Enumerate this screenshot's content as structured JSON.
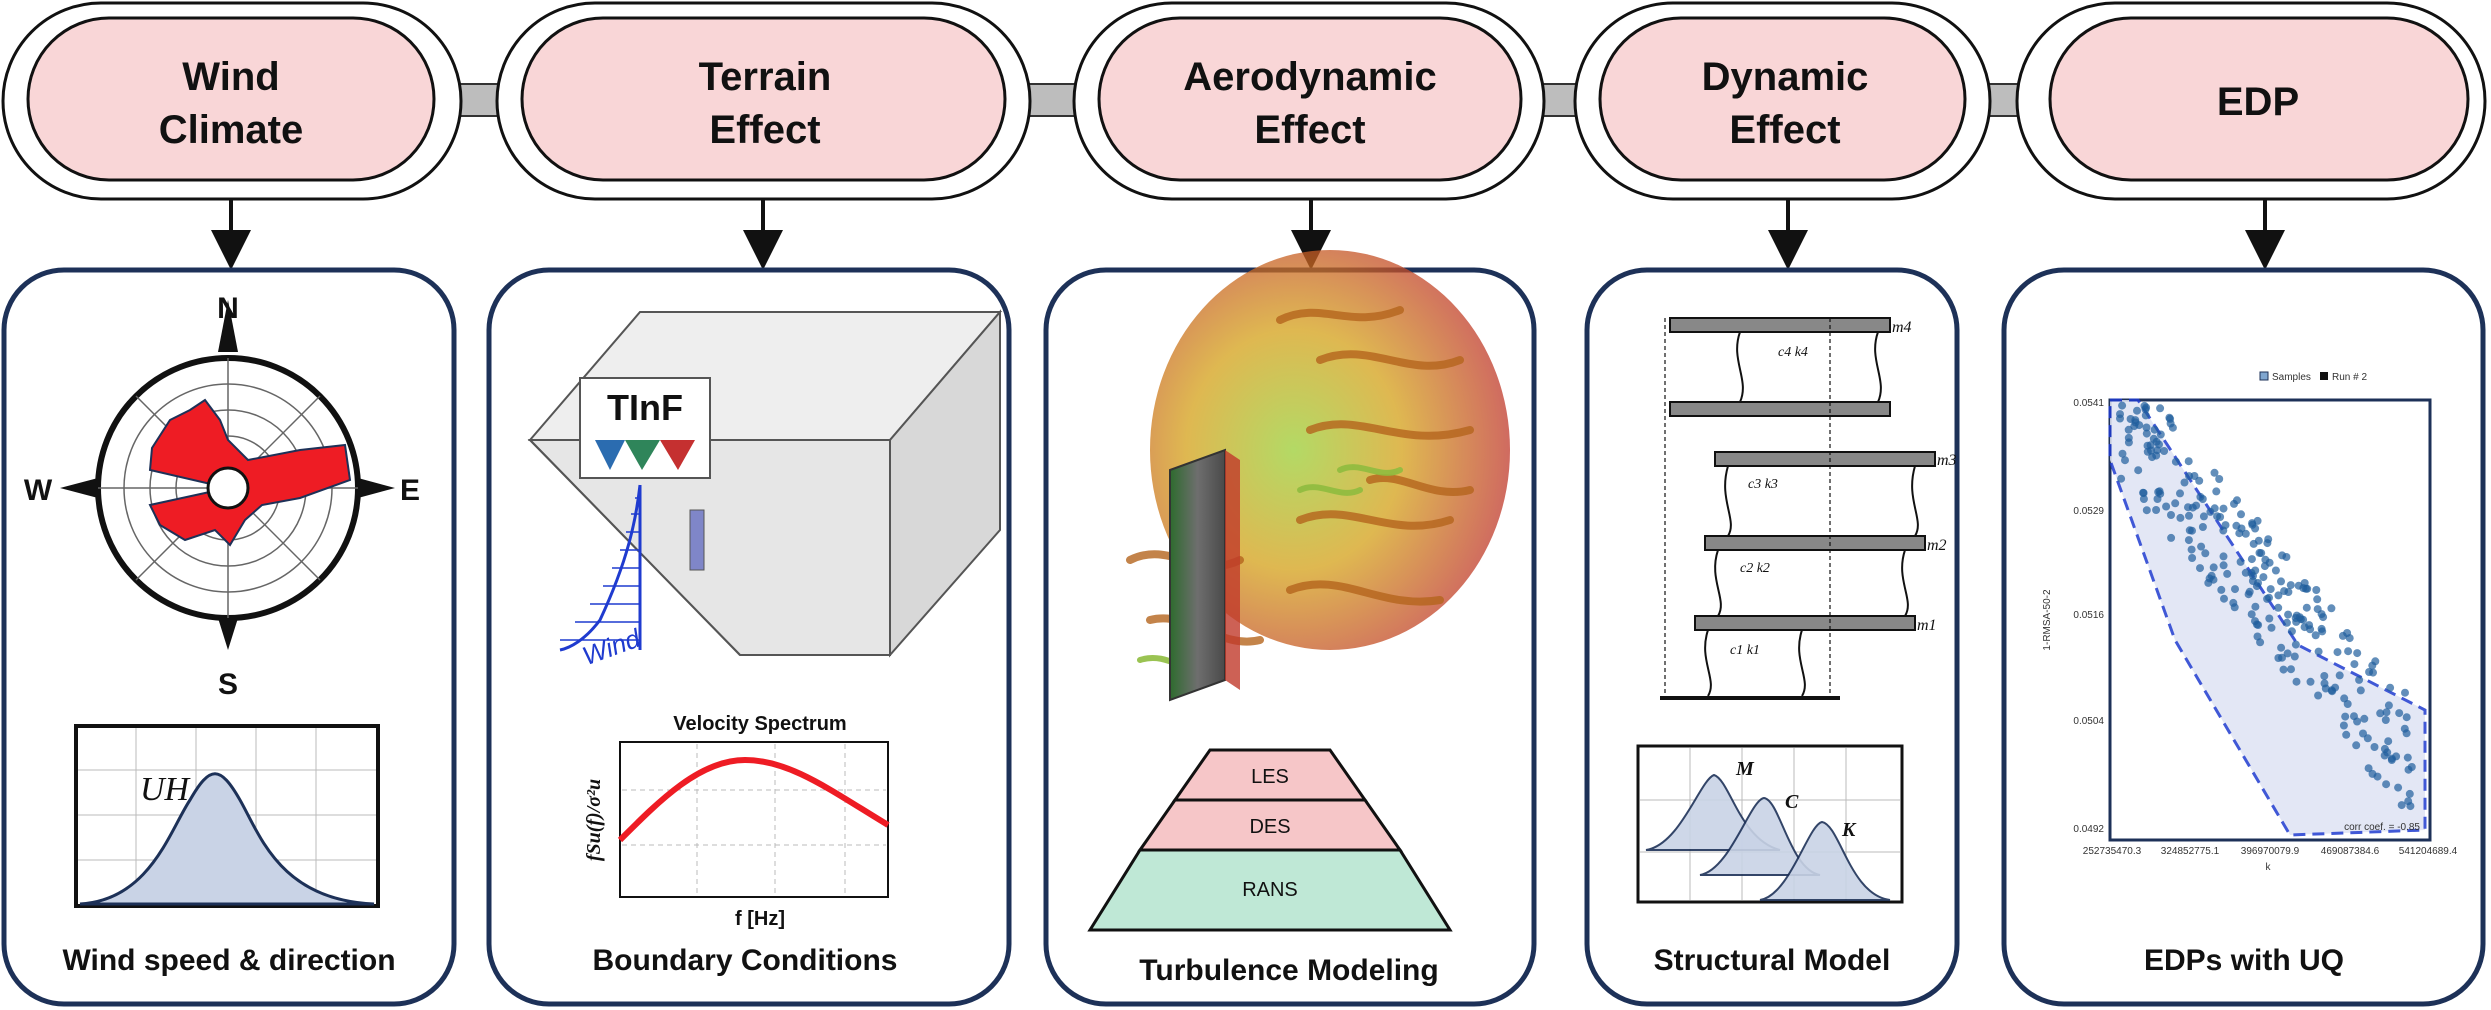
{
  "stages": [
    {
      "line1": "Wind",
      "line2": "Climate"
    },
    {
      "line1": "Terrain",
      "line2": "Effect"
    },
    {
      "line1": "Aerodynamic",
      "line2": "Effect"
    },
    {
      "line1": "Dynamic",
      "line2": "Effect"
    },
    {
      "line1": "EDP",
      "line2": ""
    }
  ],
  "captions": [
    "Wind speed & direction",
    "Boundary Conditions",
    "Turbulence Modeling",
    "Structural Model",
    "EDPs with UQ"
  ],
  "compass": {
    "n": "N",
    "s": "S",
    "e": "E",
    "w": "W"
  },
  "wind_dist_label": "UH",
  "tinf": {
    "logo": "TInF",
    "wind": "Wind"
  },
  "spectrum": {
    "title": "Velocity Spectrum",
    "xlabel": "f [Hz]",
    "ylabel": "fSu(f)/σ²u"
  },
  "turbulence_levels": [
    "LES",
    "DES",
    "RANS"
  ],
  "structure": {
    "masses": [
      "m4",
      "m3",
      "m2",
      "m1"
    ],
    "springs": [
      "c4 k4",
      "c3 k3",
      "c2 k2",
      "c1 k1"
    ],
    "distributions": [
      "M",
      "C",
      "K"
    ]
  },
  "edp_chart": {
    "legend": [
      "Samples",
      "Run # 2"
    ],
    "yticks": [
      "0.0541",
      "0.0529",
      "0.0516",
      "0.0504",
      "0.0492"
    ],
    "xticks": [
      "252735470.3",
      "324852775.1",
      "396970079.9",
      "469087384.6",
      "541204689.4"
    ],
    "xlabel": "k",
    "ylabel": "1-RMSA-50-2",
    "corr": "corr coef. = -0.85"
  },
  "colors": {
    "pill_fill": "#f9d6d7",
    "panel_border": "#1d3158",
    "connector": "#bdbdbd",
    "rose": "#ee1c24",
    "dist_fill": "#c9d3e6",
    "les_fill": "#f6c6c8",
    "rans_fill": "#bfe8d6",
    "scatter": "#1f5e9c"
  }
}
